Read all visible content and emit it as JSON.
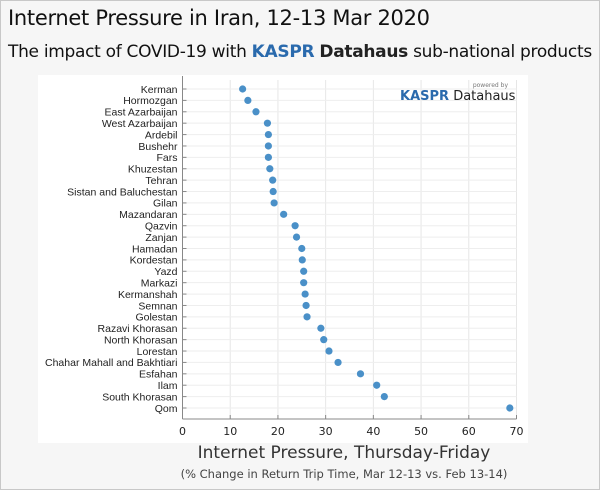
{
  "title": "Internet Pressure in Iran, 12-13 Mar 2020",
  "subtitle": {
    "pre": "The impact of COVID-19 with ",
    "brand1": "KASPR",
    "brand2": "Datahaus",
    "post": " sub-national products"
  },
  "logo": {
    "powered_by": "powered by",
    "brand1": "KASPR",
    "brand2": "Datahaus"
  },
  "colors": {
    "point": "#4a90c8",
    "brand": "#2a6aad"
  },
  "chart_data": {
    "type": "scatter",
    "title": "Internet Pressure in Iran, 12-13 Mar 2020",
    "xlabel": "Internet Pressure, Thursday-Friday",
    "xlabel_sub": "(% Change in Return Trip Time, Mar 12-13 vs. Feb 13-14)",
    "xlim": [
      0,
      70
    ],
    "xticks": [
      "0",
      "10",
      "20",
      "30",
      "40",
      "50",
      "60",
      "70"
    ],
    "grid": true,
    "categories": [
      "Kerman",
      "Hormozgan",
      "East Azarbaijan",
      "West Azarbaijan",
      "Ardebil",
      "Bushehr",
      "Fars",
      "Khuzestan",
      "Tehran",
      "Sistan and Baluchestan",
      "Gilan",
      "Mazandaran",
      "Qazvin",
      "Zanjan",
      "Hamadan",
      "Kordestan",
      "Yazd",
      "Markazi",
      "Kermanshah",
      "Semnan",
      "Golestan",
      "Razavi Khorasan",
      "North Khorasan",
      "Lorestan",
      "Chahar Mahall and Bakhtiari",
      "Esfahan",
      "Ilam",
      "South Khorasan",
      "Qom"
    ],
    "values": [
      12.6,
      13.7,
      15.4,
      17.8,
      18.0,
      18.0,
      18.0,
      18.3,
      18.9,
      19.0,
      19.2,
      21.2,
      23.6,
      23.9,
      25.0,
      25.1,
      25.4,
      25.4,
      25.7,
      25.9,
      26.1,
      29.0,
      29.6,
      30.7,
      32.6,
      37.3,
      40.7,
      42.3,
      68.6
    ]
  }
}
